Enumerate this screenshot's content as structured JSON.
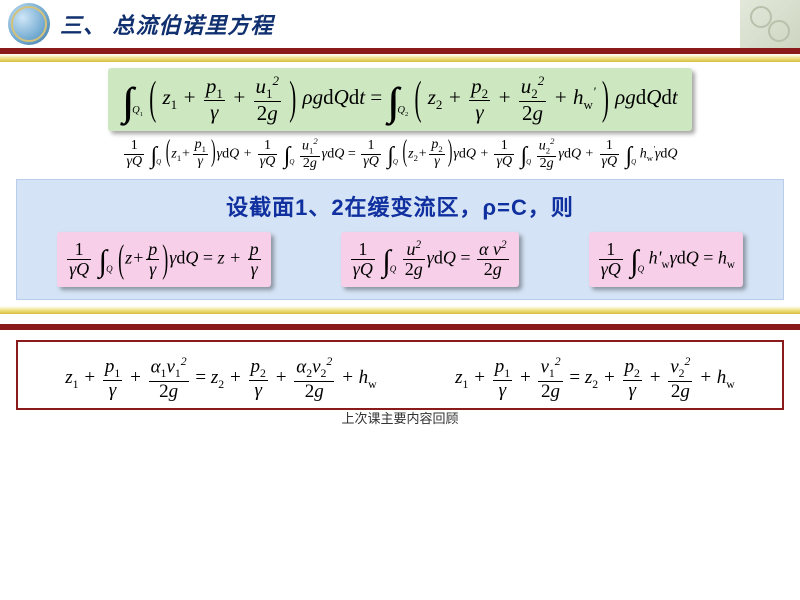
{
  "header": {
    "title": "三、 总流伯诺里方程"
  },
  "colors": {
    "accent": "#8b1a1a",
    "blue": "#10306f",
    "green_box": "#cde8c0",
    "pink_box": "#f7cfe8",
    "blue_box": "#d4e3f5",
    "gold": "#d8bd3c"
  },
  "equations": {
    "main_integral": {
      "type": "equation",
      "background": "green",
      "shadow": true,
      "lhs": {
        "integral": "double",
        "domain": "Q1",
        "integrand_terms": [
          "z_1",
          "p_1/γ",
          "u_1^2/(2g)"
        ],
        "factors": "ρgdQdt"
      },
      "rhs": {
        "integral": "double",
        "domain": "Q2",
        "integrand_terms": [
          "z_2",
          "p_2/γ",
          "u_2^2/(2g)",
          "h'_w"
        ],
        "factors": "ρgdQdt"
      }
    },
    "expanded": {
      "type": "equation",
      "fontsize": 14,
      "text": "(1/γQ)∫_Q(z_1+p_1/γ)γdQ + (1/γQ)∫_Q(u_1^2/2g)γdQ = (1/γQ)∫_Q(z_2+p_2/γ)γdQ + (1/γQ)∫_Q(u_2^2/2g)γdQ + (1/γQ)∫_Q h'_w γdQ"
    },
    "assumption": "设截面1、2在缓变流区，ρ=C，则",
    "simplifications": [
      {
        "lhs": "(1/γQ)∫_Q(z+p/γ)γdQ",
        "rhs": "z + p/γ"
      },
      {
        "lhs": "(1/γQ)∫_Q(u^2/2g)γdQ",
        "rhs": "α v^2 / 2g"
      },
      {
        "lhs": "(1/γQ)∫_Q h'_w γdQ",
        "rhs": "h_w"
      }
    ],
    "final": [
      "z_1 + p_1/γ + α_1 v_1^2/(2g) = z_2 + p_2/γ + α_2 v_2^2/(2g) + h_w",
      "z_1 + p_1/γ + v_1^2/(2g) = z_2 + p_2/γ + v_2^2/(2g) + h_w"
    ]
  },
  "footer": "上次课主要内容回顾"
}
